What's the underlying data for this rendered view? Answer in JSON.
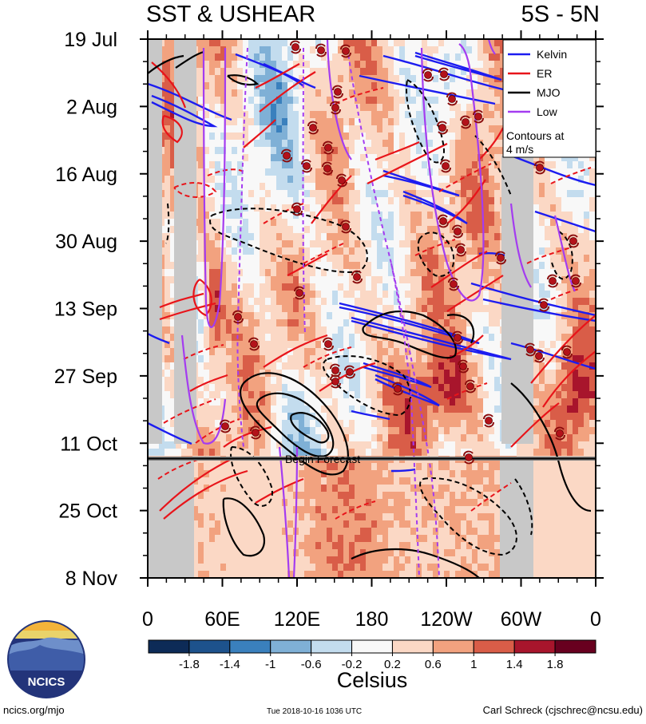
{
  "title_left": "SST & USHEAR",
  "title_right": "5S - 5N",
  "forecast_label": "Begin Forecast",
  "colors": {
    "kelvin": "#1c1cf0",
    "er": "#e8141a",
    "mjo": "#000000",
    "low": "#a43cf0",
    "missing": "#c8c8c8",
    "logo_navy": "#23347a"
  },
  "chart_data": {
    "type": "heatmap",
    "xlabel": "",
    "ylabel": "",
    "x_ticks": [
      "0",
      "60E",
      "120E",
      "180",
      "120W",
      "60W",
      "0"
    ],
    "x_range": [
      0,
      360
    ],
    "y_ticks": [
      "19 Jul",
      "2 Aug",
      "16 Aug",
      "30 Aug",
      "13 Sep",
      "27 Sep",
      "11 Oct",
      "25 Oct",
      "8 Nov"
    ],
    "y_range_days": [
      0,
      112
    ],
    "forecast_start_day": 86,
    "colorbar": {
      "unit": "Celsius",
      "tick_labels": [
        "-1.8",
        "-1.4",
        "-1",
        "-0.6",
        "-0.2",
        "0.2",
        "0.6",
        "1",
        "1.4",
        "1.8"
      ],
      "colors": [
        "#0d2b57",
        "#1d528c",
        "#3a80bd",
        "#7fb0d6",
        "#c3dcee",
        "#f8f8f8",
        "#fbd8c5",
        "#f2a27f",
        "#d95d48",
        "#a8152c",
        "#68001f"
      ]
    },
    "legend": {
      "placement": "top-right",
      "entries": [
        {
          "name": "Kelvin",
          "color": "#1c1cf0"
        },
        {
          "name": "ER",
          "color": "#e8141a"
        },
        {
          "name": "MJO",
          "color": "#000000"
        },
        {
          "name": "Low",
          "color": "#a43cf0"
        }
      ],
      "note": "Contours at\n4 m/s"
    }
  },
  "footer": {
    "url": "ncics.org/mjo",
    "timestamp": "Tue 2018-10-16 1036 UTC",
    "author": "Carl Schreck (cjschrec@ncsu.edu)",
    "logo_text": "NCICS"
  }
}
